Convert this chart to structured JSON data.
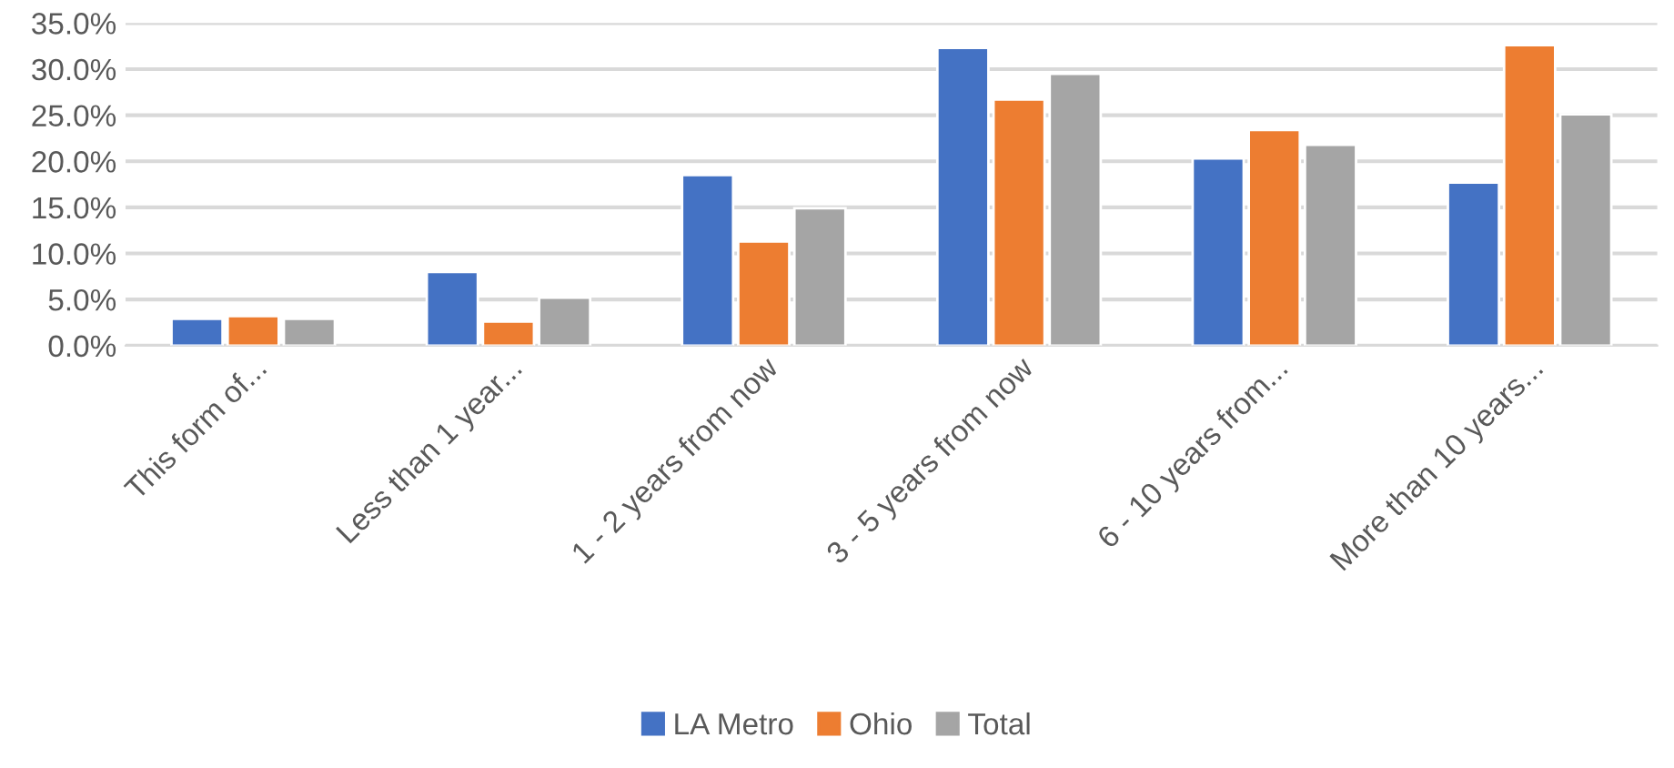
{
  "chart_data": {
    "type": "bar",
    "categories": [
      "This form of...",
      "Less than 1 year...",
      "1 - 2 years from now",
      "3 - 5 years from now",
      "6 - 10 years from...",
      "More than 10 years..."
    ],
    "series": [
      {
        "name": "LA Metro",
        "color": "#4472c4",
        "values": [
          2.9,
          8.0,
          18.5,
          32.3,
          20.3,
          17.7
        ]
      },
      {
        "name": "Ohio",
        "color": "#ed7d31",
        "values": [
          3.2,
          2.6,
          11.3,
          26.7,
          23.4,
          32.6
        ]
      },
      {
        "name": "Total",
        "color": "#a5a5a5",
        "values": [
          2.9,
          5.2,
          14.9,
          29.5,
          21.8,
          25.1
        ]
      }
    ],
    "ylim": [
      0,
      35
    ],
    "yticks": [
      {
        "value": 0,
        "label": "0.0%"
      },
      {
        "value": 5,
        "label": "5.0%"
      },
      {
        "value": 10,
        "label": "10.0%"
      },
      {
        "value": 15,
        "label": "15.0%"
      },
      {
        "value": 20,
        "label": "20.0%"
      },
      {
        "value": 25,
        "label": "25.0%"
      },
      {
        "value": 30,
        "label": "30.0%"
      },
      {
        "value": 35,
        "label": "35.0%"
      }
    ],
    "grid": "y",
    "legend": "bottom"
  }
}
